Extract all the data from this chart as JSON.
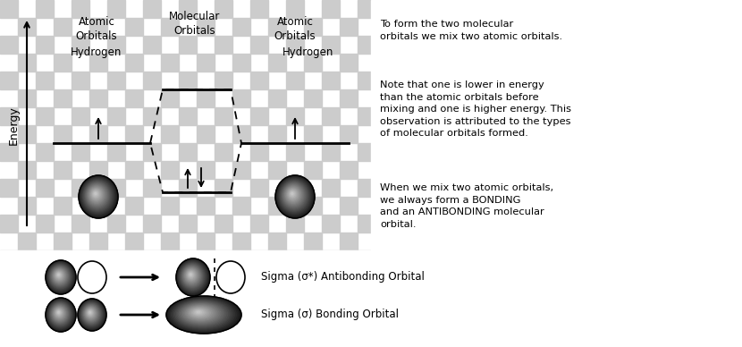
{
  "bg_color": "#ffffff",
  "checker_color": "#cccccc",
  "checker_size": 20,
  "energy_label": "Energy",
  "left_label_1": "Atomic\nOrbitals",
  "left_label_2": "Hydrogen",
  "mid_label": "Molecular\nOrbitals",
  "right_label_1": "Atomic\nOrbitals",
  "right_label_2": "Hydrogen",
  "p1": "To form the two molecular\norbitals we mix two atomic orbitals.",
  "p2": "Note that one is lower in energy\nthan the atomic orbitals before\nmixing and one is higher energy. This\nobservation is attributed to the types\nof molecular orbitals formed.",
  "p3": "When we mix two atomic orbitals,\nwe always form a BONDING\nand an ANTIBONDING molecular\norbital.",
  "label_antibonding": "Sigma (σ*) Antibonding Orbital",
  "label_bonding": "Sigma (σ) Bonding Orbital"
}
